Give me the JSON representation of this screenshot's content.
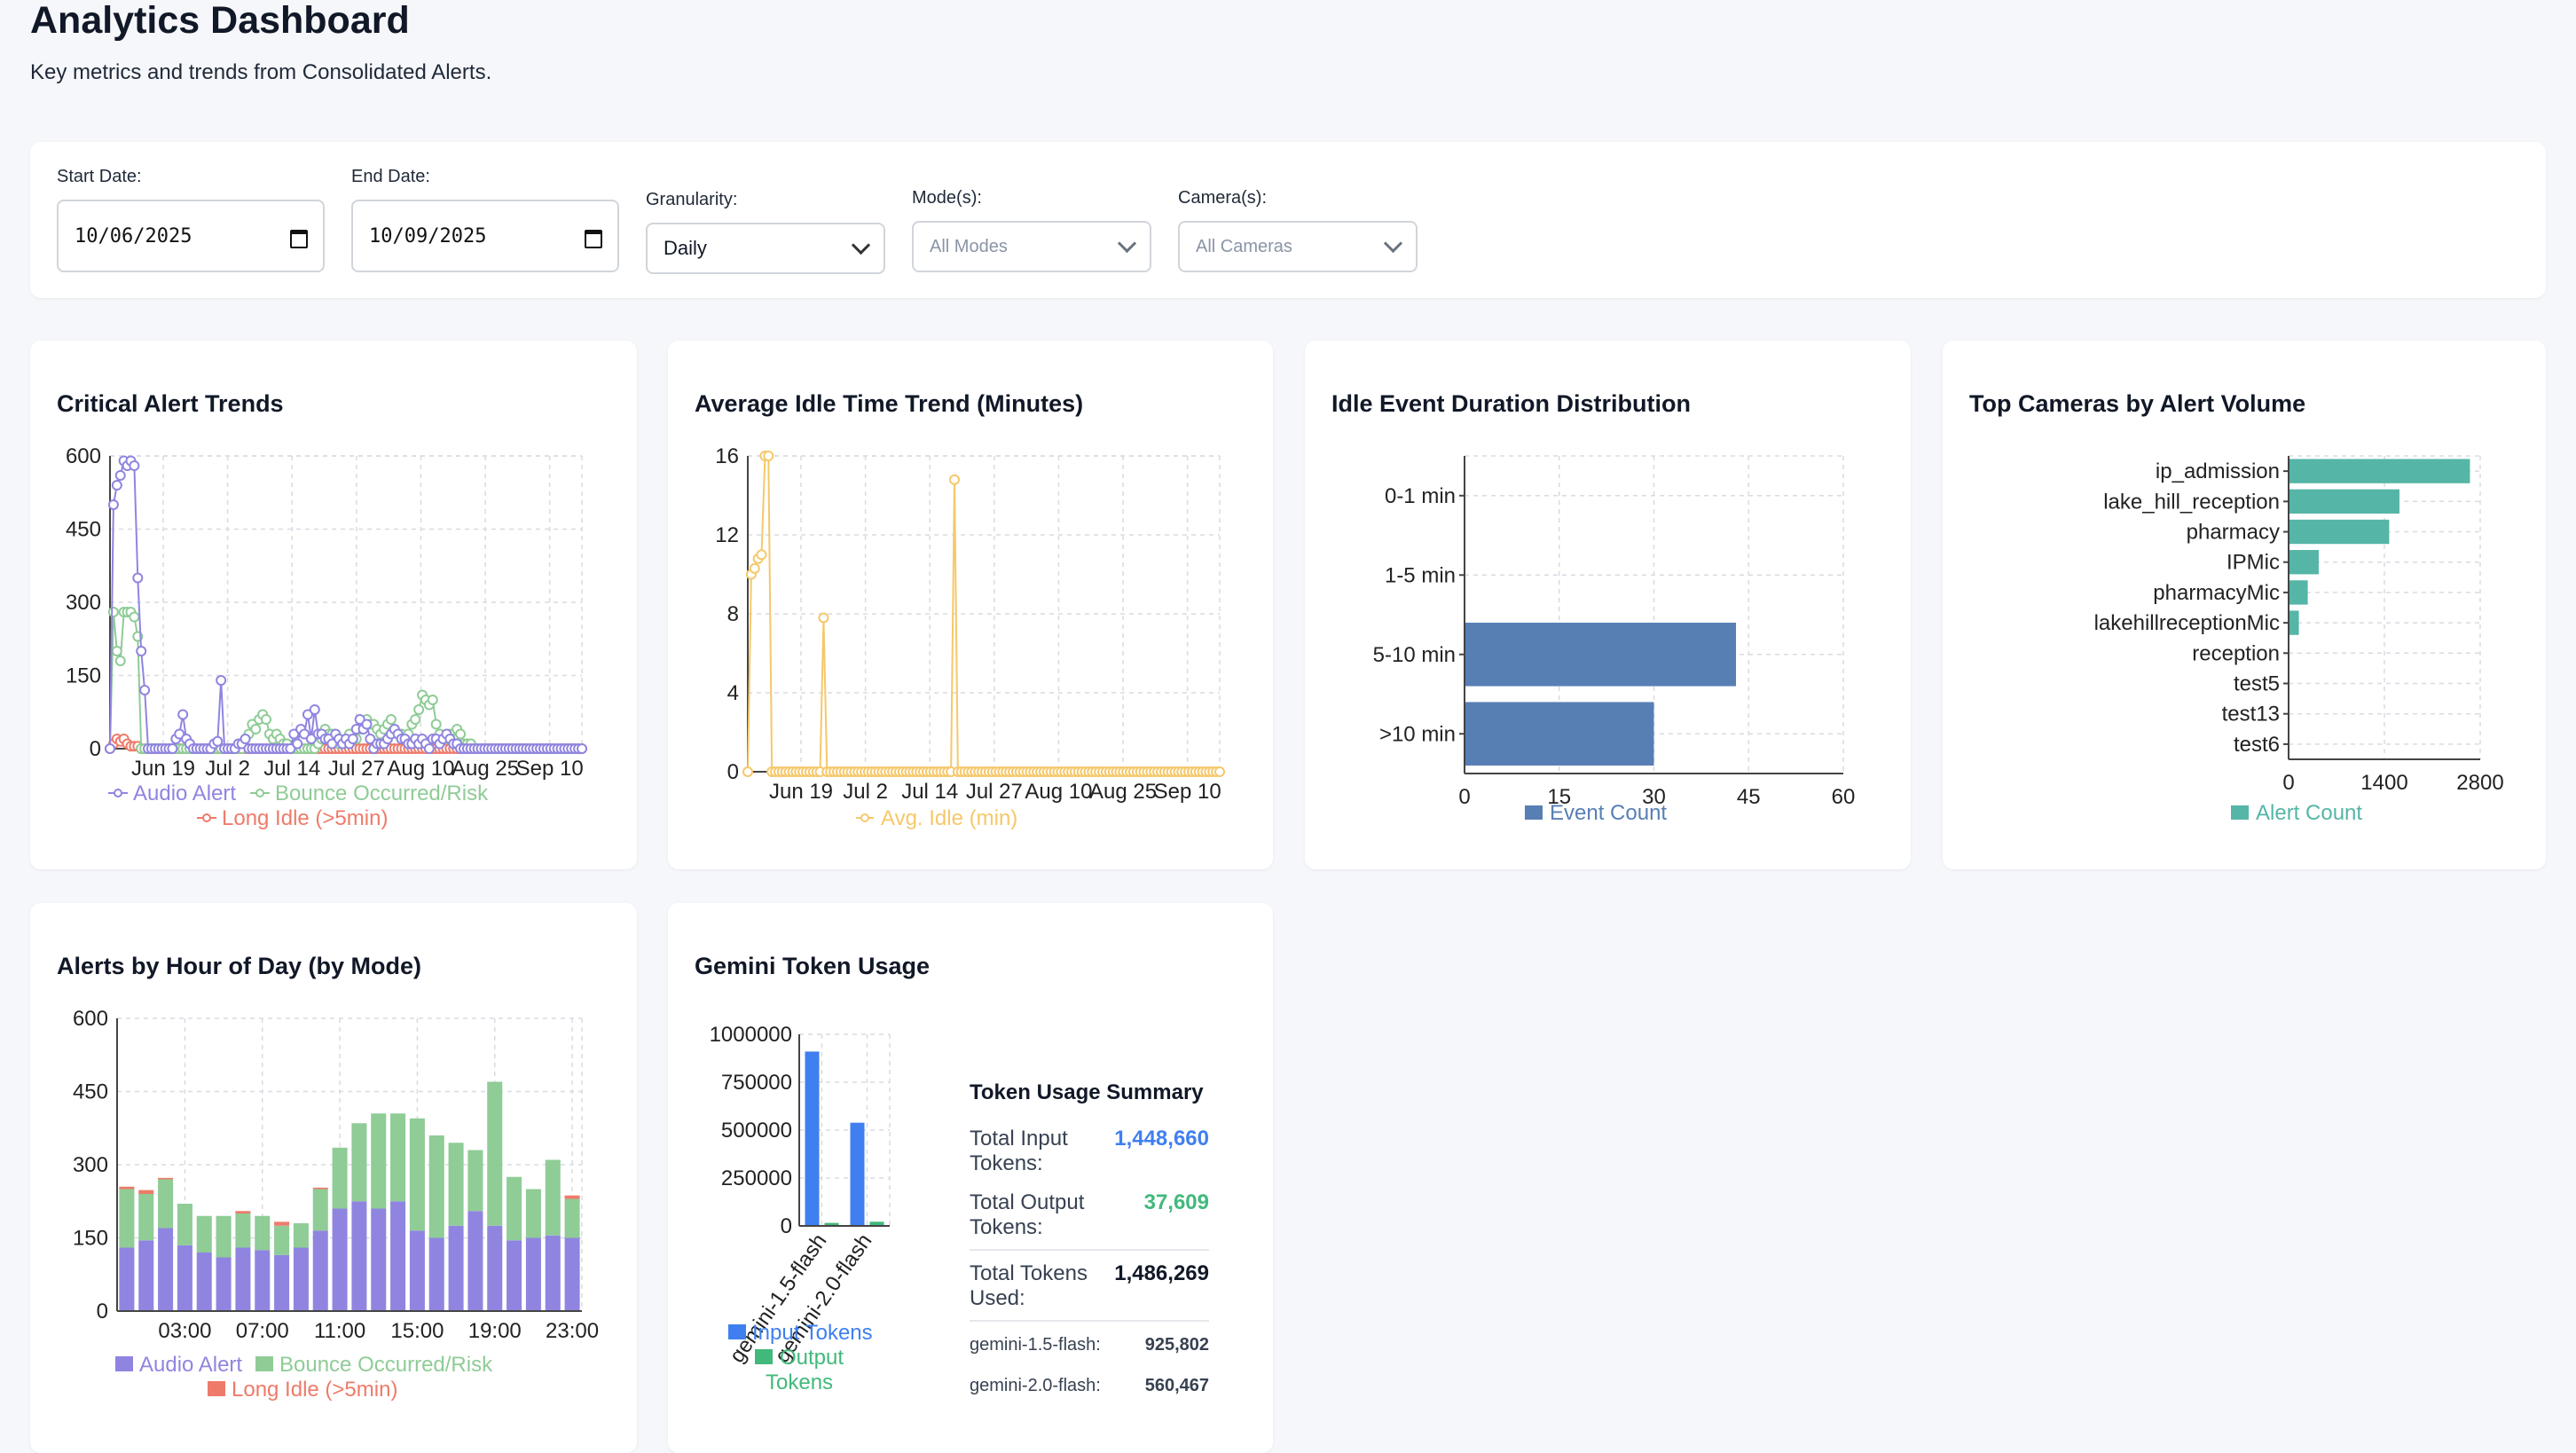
{
  "header": {
    "title": "Analytics Dashboard",
    "subtitle": "Key metrics and trends from Consolidated Alerts."
  },
  "filters": {
    "start_date": {
      "label": "Start Date:",
      "value": "10/06/2025"
    },
    "end_date": {
      "label": "End Date:",
      "value": "10/09/2025"
    },
    "granularity": {
      "label": "Granularity:",
      "value": "Daily"
    },
    "modes": {
      "label": "Mode(s):",
      "value": "All Modes"
    },
    "cameras": {
      "label": "Camera(s):",
      "value": "All Cameras"
    }
  },
  "colors": {
    "audio": "#8f85e0",
    "bounce": "#8fcc96",
    "long_idle": "#ee7b6a",
    "idle_avg": "#f5c86a",
    "duration_bar": "#577fb4",
    "camera_bar": "#55b5a7",
    "input_tokens": "#3f7ff0",
    "output_tokens": "#41b97b"
  },
  "cards": {
    "critical": {
      "title": "Critical Alert Trends"
    },
    "idle_trend": {
      "title": "Average Idle Time Trend (Minutes)"
    },
    "duration": {
      "title": "Idle Event Duration Distribution"
    },
    "cameras": {
      "title": "Top Cameras by Alert Volume"
    },
    "hourly": {
      "title": "Alerts by Hour of Day (by Mode)"
    },
    "tokens": {
      "title": "Gemini Token Usage",
      "summary_title": "Token Usage Summary",
      "total_input_label": "Total Input Tokens:",
      "total_input_value": "1,448,660",
      "total_output_label": "Total Output Tokens:",
      "total_output_value": "37,609",
      "total_used_label": "Total Tokens Used:",
      "total_used_value": "1,486,269",
      "model_1_label": "gemini-1.5-flash:",
      "model_1_value": "925,802",
      "model_2_label": "gemini-2.0-flash:",
      "model_2_value": "560,467"
    }
  },
  "chart_data": [
    {
      "id": "critical",
      "type": "line",
      "title": "Critical Alert Trends",
      "x_ticks": [
        "Jun 19",
        "Jul 2",
        "Jul 14",
        "Jul 27",
        "Aug 10",
        "Aug 25",
        "Sep 10"
      ],
      "y_ticks": [
        0,
        150,
        300,
        450,
        600
      ],
      "ylim": [
        0,
        600
      ],
      "grid": true,
      "legend_placement": "bottom",
      "series": [
        {
          "name": "Audio Alert",
          "values": [
            0,
            500,
            540,
            560,
            590,
            580,
            590,
            580,
            350,
            200,
            120,
            0,
            0,
            0,
            0,
            0,
            0,
            0,
            0,
            20,
            30,
            70,
            20,
            10,
            0,
            0,
            0,
            0,
            0,
            0,
            10,
            15,
            140,
            0,
            0,
            0,
            0,
            10,
            10,
            20,
            0,
            0,
            0,
            0,
            0,
            0,
            0,
            0,
            0,
            0,
            0,
            0,
            0,
            30,
            10,
            40,
            30,
            70,
            20,
            80,
            30,
            30,
            20,
            20,
            10,
            30,
            20,
            10,
            20,
            10,
            20,
            40,
            60,
            40,
            50,
            20,
            0,
            10,
            10,
            10,
            20,
            30,
            40,
            30,
            20,
            20,
            10,
            10,
            20,
            10,
            20,
            10,
            0,
            20,
            20,
            10,
            20,
            30,
            20,
            10,
            10,
            0,
            0,
            0,
            0,
            0,
            0,
            0,
            0,
            0,
            0,
            0,
            0,
            0,
            0,
            0,
            0,
            0,
            0,
            0,
            0,
            0,
            0,
            0,
            0,
            0,
            0,
            0,
            0,
            0,
            0,
            0,
            0,
            0,
            0,
            0,
            0
          ]
        },
        {
          "name": "Bounce Occurred/Risk",
          "values": [
            0,
            280,
            200,
            180,
            280,
            280,
            280,
            270,
            230,
            0,
            0,
            0,
            0,
            0,
            0,
            0,
            0,
            0,
            0,
            0,
            0,
            0,
            0,
            0,
            0,
            0,
            0,
            0,
            0,
            0,
            0,
            0,
            0,
            0,
            0,
            0,
            0,
            0,
            0,
            20,
            30,
            50,
            40,
            60,
            70,
            60,
            30,
            20,
            30,
            20,
            10,
            10,
            0,
            0,
            0,
            0,
            0,
            0,
            0,
            0,
            10,
            20,
            40,
            30,
            30,
            20,
            10,
            10,
            20,
            30,
            20,
            20,
            40,
            50,
            60,
            50,
            50,
            40,
            30,
            40,
            50,
            60,
            40,
            30,
            30,
            20,
            30,
            50,
            60,
            80,
            110,
            100,
            90,
            100,
            50,
            30,
            20,
            20,
            30,
            20,
            40,
            30,
            10,
            10,
            10,
            0,
            0,
            0,
            0,
            0,
            0,
            0,
            0,
            0,
            0,
            0,
            0,
            0,
            0,
            0,
            0,
            0,
            0,
            0,
            0,
            0,
            0,
            0,
            0,
            0,
            0,
            0,
            0,
            0,
            0,
            0
          ]
        },
        {
          "name": "Long Idle (>5min)",
          "values": [
            0,
            10,
            20,
            15,
            20,
            10,
            5,
            5,
            5,
            0,
            0,
            0,
            0,
            0,
            0,
            0,
            0,
            0,
            0,
            0,
            0,
            0,
            0,
            0,
            0,
            0,
            0,
            0,
            0,
            0,
            0,
            0,
            0,
            0,
            0,
            0,
            0,
            0,
            0,
            0,
            0,
            0,
            0,
            0,
            0,
            0,
            0,
            0,
            0,
            0,
            0,
            0,
            0,
            0,
            0,
            0,
            0,
            0,
            0,
            0,
            0,
            0,
            0,
            0,
            0,
            0,
            0,
            0,
            0,
            0,
            0,
            0,
            0,
            0,
            0,
            0,
            0,
            0,
            0,
            0,
            0,
            0,
            0,
            0,
            0,
            0,
            0,
            0,
            0,
            0,
            0,
            0,
            0,
            0,
            0,
            0,
            0,
            0,
            0,
            0,
            0,
            0,
            0,
            0,
            0,
            0,
            0,
            0,
            0,
            0,
            0,
            0,
            0,
            0,
            0,
            0,
            0,
            0,
            0,
            0,
            0,
            0,
            0,
            0,
            0,
            0,
            0,
            0,
            0,
            0,
            0,
            0,
            0,
            0,
            0,
            0,
            0
          ]
        }
      ]
    },
    {
      "id": "idle_trend",
      "type": "line",
      "title": "Average Idle Time Trend (Minutes)",
      "x_ticks": [
        "Jun 19",
        "Jul 2",
        "Jul 14",
        "Jul 27",
        "Aug 10",
        "Aug 25",
        "Sep 10"
      ],
      "y_ticks": [
        0,
        4,
        8,
        12,
        16
      ],
      "ylim": [
        0,
        16
      ],
      "grid": true,
      "legend_placement": "bottom",
      "series": [
        {
          "name": "Avg. Idle (min)",
          "values": [
            0,
            10,
            10.3,
            10.8,
            11,
            16,
            16,
            0,
            0,
            0,
            0,
            0,
            0,
            0,
            0,
            0,
            0,
            0,
            0,
            0,
            0,
            0,
            7.8,
            0,
            0,
            0,
            0,
            0,
            0,
            0,
            0,
            0,
            0,
            0,
            0,
            0,
            0,
            0,
            0,
            0,
            0,
            0,
            0,
            0,
            0,
            0,
            0,
            0,
            0,
            0,
            0,
            0,
            0,
            0,
            0,
            0,
            0,
            0,
            0,
            0,
            14.8,
            0,
            0,
            0,
            0,
            0,
            0,
            0,
            0,
            0,
            0,
            0,
            0,
            0,
            0,
            0,
            0,
            0,
            0,
            0,
            0,
            0,
            0,
            0,
            0,
            0,
            0,
            0,
            0,
            0,
            0,
            0,
            0,
            0,
            0,
            0,
            0,
            0,
            0,
            0,
            0,
            0,
            0,
            0,
            0,
            0,
            0,
            0,
            0,
            0,
            0,
            0,
            0,
            0,
            0,
            0,
            0,
            0,
            0,
            0,
            0,
            0,
            0,
            0,
            0,
            0,
            0,
            0,
            0,
            0,
            0,
            0,
            0,
            0,
            0,
            0,
            0,
            0
          ]
        }
      ]
    },
    {
      "id": "duration",
      "type": "bar",
      "orientation": "horizontal",
      "title": "Idle Event Duration Distribution",
      "categories": [
        "0-1 min",
        "1-5 min",
        "5-10 min",
        ">10 min"
      ],
      "series": [
        {
          "name": "Event Count",
          "values": [
            0,
            0,
            43,
            30
          ]
        }
      ],
      "x_ticks": [
        0,
        15,
        30,
        45,
        60
      ],
      "xlim": [
        0,
        60
      ],
      "grid": true,
      "legend_placement": "bottom"
    },
    {
      "id": "cameras",
      "type": "bar",
      "orientation": "horizontal",
      "title": "Top Cameras by Alert Volume",
      "categories": [
        "ip_admission",
        "lake_hill_reception",
        "pharmacy",
        "IPMic",
        "pharmacyMic",
        "lakehillreceptionMic",
        "reception",
        "test5",
        "test13",
        "test6"
      ],
      "series": [
        {
          "name": "Alert Count",
          "values": [
            2650,
            1620,
            1470,
            440,
            280,
            150,
            0,
            0,
            0,
            0
          ]
        }
      ],
      "x_ticks": [
        0,
        1400,
        2800
      ],
      "xlim": [
        0,
        2800
      ],
      "grid": true,
      "legend_placement": "bottom"
    },
    {
      "id": "hourly",
      "type": "bar",
      "stacked": true,
      "title": "Alerts by Hour of Day (by Mode)",
      "categories": [
        "00:00",
        "01:00",
        "02:00",
        "03:00",
        "04:00",
        "05:00",
        "06:00",
        "07:00",
        "08:00",
        "09:00",
        "10:00",
        "11:00",
        "12:00",
        "13:00",
        "14:00",
        "15:00",
        "16:00",
        "17:00",
        "18:00",
        "19:00",
        "20:00",
        "21:00",
        "22:00",
        "23:00"
      ],
      "x_ticks": [
        "03:00",
        "07:00",
        "11:00",
        "15:00",
        "19:00",
        "23:00"
      ],
      "y_ticks": [
        0,
        150,
        300,
        450,
        600
      ],
      "ylim": [
        0,
        600
      ],
      "grid": true,
      "legend_placement": "bottom",
      "series": [
        {
          "name": "Audio Alert",
          "values": [
            130,
            145,
            170,
            135,
            120,
            110,
            130,
            125,
            115,
            130,
            165,
            210,
            225,
            210,
            225,
            165,
            150,
            175,
            205,
            175,
            145,
            150,
            155,
            150
          ]
        },
        {
          "name": "Bounce Occurred/Risk",
          "values": [
            120,
            95,
            100,
            85,
            75,
            85,
            70,
            70,
            60,
            50,
            85,
            125,
            160,
            195,
            180,
            230,
            210,
            170,
            125,
            295,
            130,
            100,
            155,
            80
          ]
        },
        {
          "name": "Long Idle (>5min)",
          "values": [
            5,
            8,
            3,
            0,
            0,
            0,
            5,
            0,
            8,
            0,
            3,
            0,
            0,
            0,
            0,
            0,
            0,
            0,
            0,
            0,
            0,
            0,
            0,
            7
          ]
        }
      ]
    },
    {
      "id": "tokens",
      "type": "bar",
      "title": "Gemini Token Usage",
      "categories": [
        "gemini-1.5-flash",
        "gemini-2.0-flash"
      ],
      "y_ticks": [
        0,
        250000,
        500000,
        750000,
        1000000
      ],
      "ylim": [
        0,
        1000000
      ],
      "grid": true,
      "legend_placement": "bottom",
      "series": [
        {
          "name": "Input Tokens",
          "values": [
            910000,
            538660
          ]
        },
        {
          "name": "Output Tokens",
          "values": [
            15802,
            21807
          ]
        }
      ]
    }
  ],
  "legend": {
    "critical": [
      "Audio Alert",
      "Bounce Occurred/Risk",
      "Long Idle (>5min)"
    ],
    "idle_trend": [
      "Avg. Idle (min)"
    ],
    "duration": [
      "Event Count"
    ],
    "cameras": [
      "Alert Count"
    ],
    "hourly": [
      "Audio Alert",
      "Bounce Occurred/Risk",
      "Long Idle (>5min)"
    ],
    "tokens": [
      "Input Tokens",
      "Output Tokens"
    ]
  }
}
